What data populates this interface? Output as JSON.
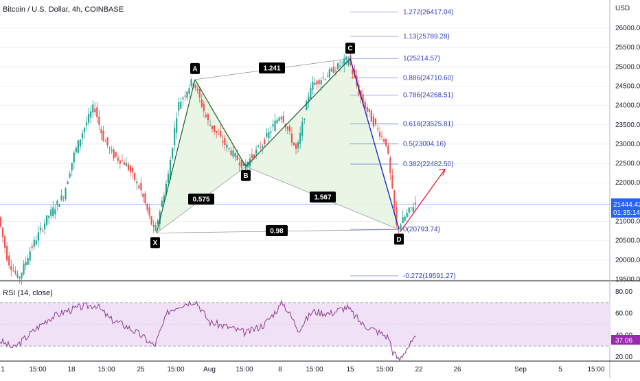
{
  "header": {
    "title": "Bitcoin / U.S. Dollar, 4h, COINBASE",
    "currency": "USD"
  },
  "price_tag": {
    "price": "21444.42",
    "countdown": "01:35:14",
    "color": "#2962ff"
  },
  "rsi": {
    "label": "RSI (14, close)",
    "value_tag": "37.06",
    "upper_band": 70,
    "lower_band": 30,
    "y_ticks": [
      "80.00",
      "60.00",
      "40.00",
      "20.00"
    ],
    "tag_color": "#9c27b0",
    "line_color": "#8e3a8e",
    "fill_color": "#f0e1f7"
  },
  "colors": {
    "up": "#26a69a",
    "down": "#ef5350",
    "pattern_green": "#1b5e20",
    "pattern_blue": "#1b26d4",
    "pattern_fill": "#e6f4e1",
    "projection_red": "#e91e2d",
    "fib_line": "#7b85d8",
    "grid": "#eef0f3"
  },
  "chart_data": {
    "type": "candlestick",
    "title": "Bitcoin / U.S. Dollar, 4h, COINBASE",
    "ylabel": "USD",
    "ylim": [
      19500,
      26800
    ],
    "y_ticks": [
      26000,
      25500,
      25000,
      24500,
      24000,
      23500,
      23000,
      22500,
      22000,
      21500,
      21000,
      20500,
      20000,
      19500
    ],
    "x_ticks": [
      "1",
      "15:00",
      "18",
      "15:00",
      "25",
      "15:00",
      "Aug",
      "15:00",
      "8",
      "15:00",
      "15",
      "15:00",
      "22",
      "26",
      "Sep",
      "5",
      "15:00"
    ],
    "harmonic_pattern": {
      "points": [
        {
          "label": "X",
          "price": 20700
        },
        {
          "label": "A",
          "price": 24670
        },
        {
          "label": "B",
          "price": 22420
        },
        {
          "label": "C",
          "price": 25214.57
        },
        {
          "label": "D",
          "price": 20790
        }
      ],
      "ratios": [
        {
          "label": "0.575",
          "between": "XA-AB"
        },
        {
          "label": "1.241",
          "between": "A-C"
        },
        {
          "label": "1.567",
          "between": "B-D"
        },
        {
          "label": "0.98",
          "between": "X-D"
        }
      ]
    },
    "fib_levels": [
      {
        "label": "1.272(26417.04)",
        "level": 1.272,
        "price": 26417.04
      },
      {
        "label": "1.13(25789.28)",
        "level": 1.13,
        "price": 25789.28
      },
      {
        "label": "1(25214.57)",
        "level": 1,
        "price": 25214.57
      },
      {
        "label": "0.886(24710.60)",
        "level": 0.886,
        "price": 24710.6
      },
      {
        "label": "0.786(24268.51)",
        "level": 0.786,
        "price": 24268.51
      },
      {
        "label": "0.618(23525.81)",
        "level": 0.618,
        "price": 23525.81
      },
      {
        "label": "0.5(23004.16)",
        "level": 0.5,
        "price": 23004.16
      },
      {
        "label": "0.382(22482.50)",
        "level": 0.382,
        "price": 22482.5
      },
      {
        "label": "0(20793.74)",
        "level": 0,
        "price": 20793.74
      },
      {
        "label": "-0.272(19591.27)",
        "level": -0.272,
        "price": 19591.27
      }
    ],
    "last_price": 21444.42,
    "projection": {
      "from": 20790,
      "to": 22350
    },
    "price_path": [
      {
        "x": 0,
        "p": 21200
      },
      {
        "x": 14,
        "p": 20000
      },
      {
        "x": 30,
        "p": 19500
      },
      {
        "x": 48,
        "p": 20300
      },
      {
        "x": 72,
        "p": 21100
      },
      {
        "x": 96,
        "p": 21700
      },
      {
        "x": 110,
        "p": 22700
      },
      {
        "x": 125,
        "p": 23400
      },
      {
        "x": 140,
        "p": 24000
      },
      {
        "x": 152,
        "p": 23200
      },
      {
        "x": 168,
        "p": 22700
      },
      {
        "x": 186,
        "p": 22500
      },
      {
        "x": 208,
        "p": 21800
      },
      {
        "x": 228,
        "p": 20700
      },
      {
        "x": 248,
        "p": 22200
      },
      {
        "x": 262,
        "p": 24000
      },
      {
        "x": 284,
        "p": 24670
      },
      {
        "x": 305,
        "p": 23600
      },
      {
        "x": 330,
        "p": 23000
      },
      {
        "x": 358,
        "p": 22420
      },
      {
        "x": 385,
        "p": 23000
      },
      {
        "x": 412,
        "p": 23800
      },
      {
        "x": 435,
        "p": 22800
      },
      {
        "x": 455,
        "p": 24500
      },
      {
        "x": 480,
        "p": 24800
      },
      {
        "x": 510,
        "p": 25214
      },
      {
        "x": 528,
        "p": 24200
      },
      {
        "x": 545,
        "p": 23600
      },
      {
        "x": 566,
        "p": 23000
      },
      {
        "x": 572,
        "p": 22100
      },
      {
        "x": 581,
        "p": 20790
      },
      {
        "x": 592,
        "p": 21100
      },
      {
        "x": 606,
        "p": 21444
      }
    ],
    "rsi_path": [
      {
        "x": 0,
        "v": 35
      },
      {
        "x": 20,
        "v": 28
      },
      {
        "x": 45,
        "v": 42
      },
      {
        "x": 70,
        "v": 55
      },
      {
        "x": 95,
        "v": 62
      },
      {
        "x": 118,
        "v": 66
      },
      {
        "x": 140,
        "v": 68
      },
      {
        "x": 160,
        "v": 55
      },
      {
        "x": 185,
        "v": 48
      },
      {
        "x": 205,
        "v": 40
      },
      {
        "x": 225,
        "v": 30
      },
      {
        "x": 245,
        "v": 62
      },
      {
        "x": 262,
        "v": 68
      },
      {
        "x": 285,
        "v": 72
      },
      {
        "x": 305,
        "v": 52
      },
      {
        "x": 330,
        "v": 48
      },
      {
        "x": 358,
        "v": 42
      },
      {
        "x": 385,
        "v": 50
      },
      {
        "x": 412,
        "v": 70
      },
      {
        "x": 435,
        "v": 45
      },
      {
        "x": 455,
        "v": 62
      },
      {
        "x": 480,
        "v": 60
      },
      {
        "x": 505,
        "v": 66
      },
      {
        "x": 528,
        "v": 50
      },
      {
        "x": 548,
        "v": 44
      },
      {
        "x": 566,
        "v": 38
      },
      {
        "x": 572,
        "v": 25
      },
      {
        "x": 581,
        "v": 17
      },
      {
        "x": 592,
        "v": 28
      },
      {
        "x": 606,
        "v": 37
      }
    ]
  }
}
